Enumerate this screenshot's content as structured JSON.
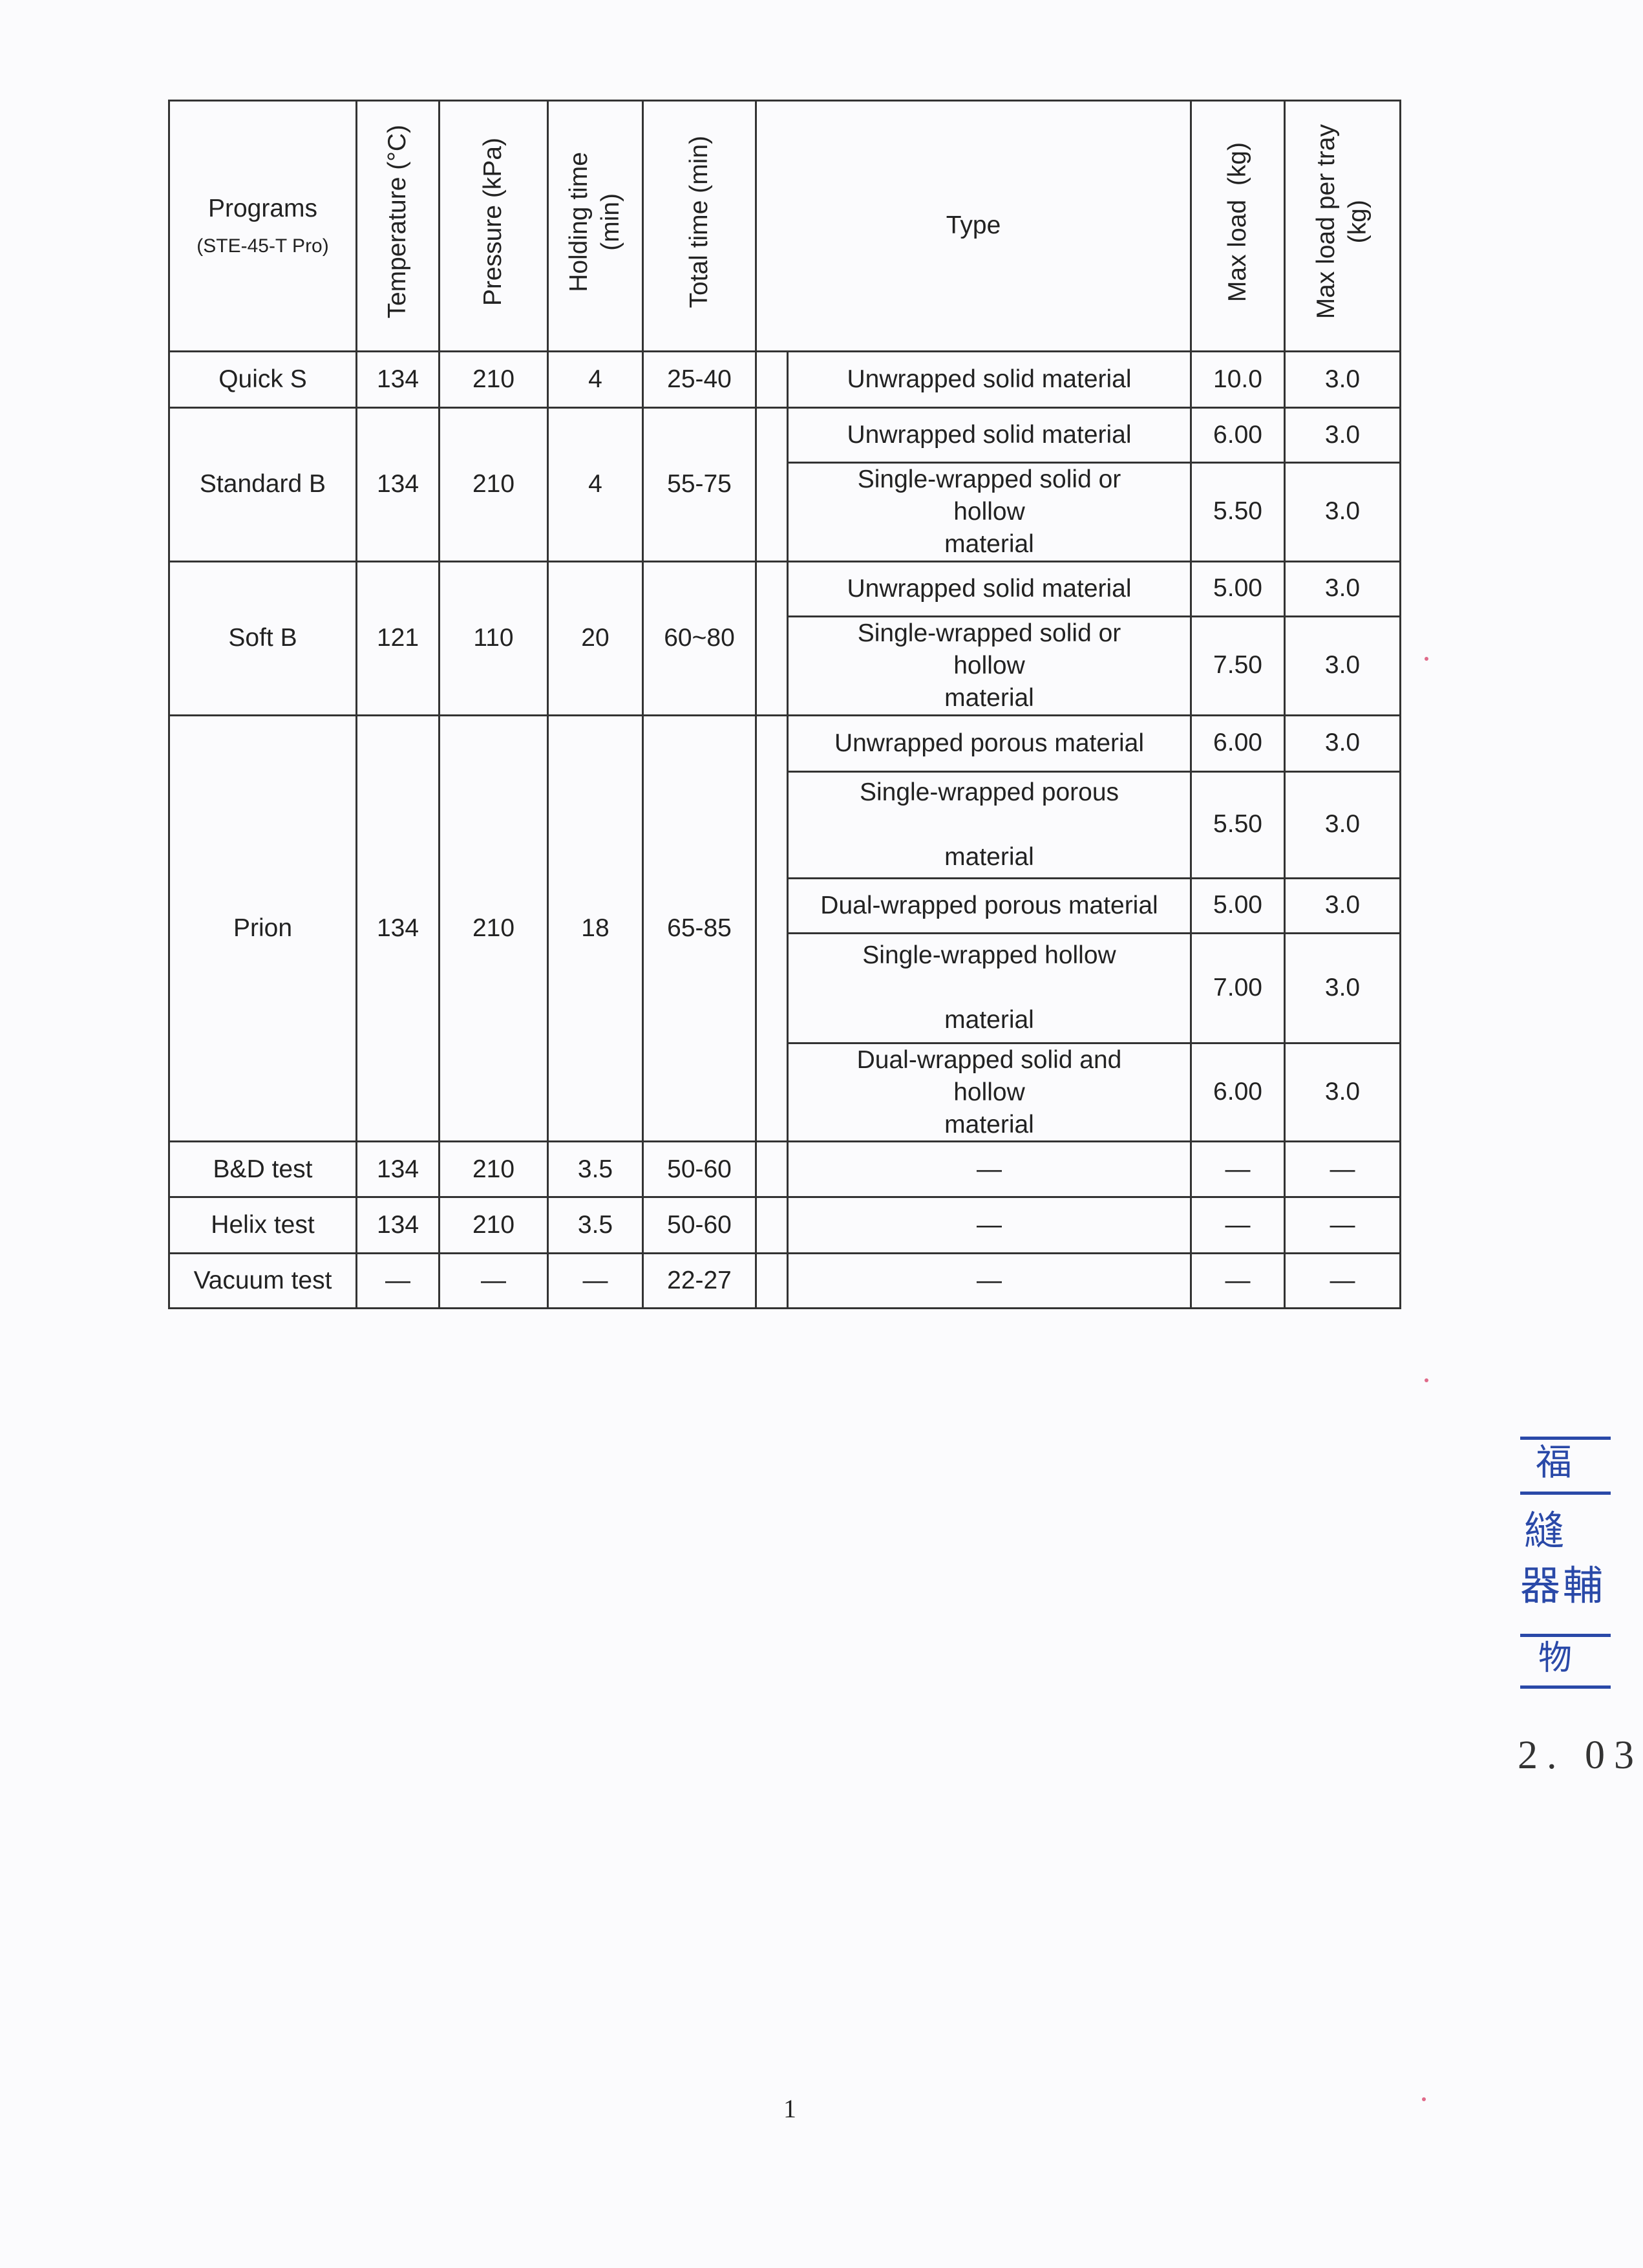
{
  "table": {
    "headers": {
      "programs": "Programs",
      "model": "(STE-45-T Pro)",
      "temperature": "Temperature (°C)",
      "pressure": "Pressure (kPa)",
      "holding_time": "Holding time",
      "holding_time_unit": "(min)",
      "total_time": "Total time (min)",
      "type": "Type",
      "max_load": "Max load  (kg)",
      "max_load_tray": "Max load per tray",
      "max_load_tray_unit": "(kg)"
    },
    "programs": [
      {
        "name": "Quick S",
        "temp": "134",
        "pressure": "210",
        "holding": "4",
        "total": "25-40",
        "loads": [
          {
            "type": "Unwrapped solid material",
            "max": "10.0",
            "tray": "3.0"
          }
        ]
      },
      {
        "name": "Standard B",
        "temp": "134",
        "pressure": "210",
        "holding": "4",
        "total": "55-75",
        "loads": [
          {
            "type": "Unwrapped solid material",
            "max": "6.00",
            "tray": "3.0"
          },
          {
            "type": "Single-wrapped solid or\nhollow\nmaterial",
            "max": "5.50",
            "tray": "3.0"
          }
        ]
      },
      {
        "name": "Soft B",
        "temp": "121",
        "pressure": "110",
        "holding": "20",
        "total": "60~80",
        "loads": [
          {
            "type": "Unwrapped solid material",
            "max": "5.00",
            "tray": "3.0"
          },
          {
            "type": "Single-wrapped solid or\nhollow\nmaterial",
            "max": "7.50",
            "tray": "3.0"
          }
        ]
      },
      {
        "name": "Prion",
        "temp": "134",
        "pressure": "210",
        "holding": "18",
        "total": "65-85",
        "loads": [
          {
            "type": "Unwrapped porous material",
            "max": "6.00",
            "tray": "3.0"
          },
          {
            "type": "Single-wrapped porous\n\nmaterial",
            "max": "5.50",
            "tray": "3.0"
          },
          {
            "type": "Dual-wrapped porous material",
            "max": "5.00",
            "tray": "3.0"
          },
          {
            "type": "Single-wrapped hollow\n\nmaterial",
            "max": "7.00",
            "tray": "3.0"
          },
          {
            "type": "Dual-wrapped solid and\nhollow\nmaterial",
            "max": "6.00",
            "tray": "3.0"
          }
        ]
      },
      {
        "name": "B&D test",
        "temp": "134",
        "pressure": "210",
        "holding": "3.5",
        "total": "50-60",
        "loads": [
          {
            "type": "—",
            "max": "—",
            "tray": "—"
          }
        ]
      },
      {
        "name": "Helix test",
        "temp": "134",
        "pressure": "210",
        "holding": "3.5",
        "total": "50-60",
        "loads": [
          {
            "type": "—",
            "max": "—",
            "tray": "—"
          }
        ]
      },
      {
        "name": "Vacuum test",
        "temp": "—",
        "pressure": "—",
        "holding": "—",
        "total": "22-27",
        "loads": [
          {
            "type": "—",
            "max": "—",
            "tray": "—"
          }
        ]
      }
    ]
  },
  "page_number": "1",
  "stamp": {
    "chars": [
      "福",
      "縫",
      "器",
      "輔",
      "物"
    ],
    "color": "#2a49a8"
  },
  "date_fragment": "2. 03"
}
